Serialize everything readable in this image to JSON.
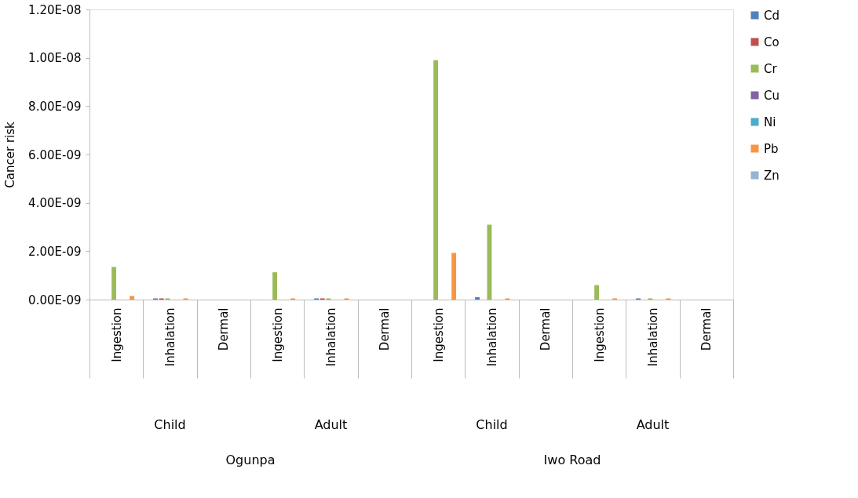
{
  "chart_data": {
    "type": "bar",
    "ylabel": "Cancer risk",
    "categories": [
      "Ingestion",
      "Inhalation",
      "Dermal",
      "Ingestion",
      "Inhalation",
      "Dermal",
      "Ingestion",
      "Inhalation",
      "Dermal",
      "Ingestion",
      "Inhalation",
      "Dermal"
    ],
    "series": [
      {
        "name": "Cd",
        "color": "#4f81bd",
        "values": [
          0,
          5e-11,
          0,
          0,
          5e-11,
          0,
          0,
          1e-10,
          0,
          0,
          5e-11,
          0
        ]
      },
      {
        "name": "Co",
        "color": "#c0504d",
        "values": [
          0,
          5e-11,
          0,
          0,
          5e-11,
          0,
          0,
          0,
          0,
          0,
          0,
          0
        ]
      },
      {
        "name": "Cr",
        "color": "#9bbb59",
        "values": [
          1.35e-09,
          5e-11,
          0,
          1.13e-09,
          5e-11,
          0,
          9.9e-09,
          3.1e-09,
          0,
          6e-10,
          5e-11,
          0
        ]
      },
      {
        "name": "Cu",
        "color": "#8064a2",
        "values": [
          0,
          0,
          0,
          0,
          0,
          0,
          0,
          0,
          0,
          0,
          0,
          0
        ]
      },
      {
        "name": "Ni",
        "color": "#4bacc6",
        "values": [
          0,
          0,
          0,
          0,
          0,
          0,
          0,
          0,
          0,
          0,
          0,
          0
        ]
      },
      {
        "name": "Pb",
        "color": "#f79646",
        "values": [
          1.5e-10,
          5e-11,
          0,
          5e-11,
          5e-11,
          0,
          1.93e-09,
          5e-11,
          0,
          5e-11,
          5e-11,
          0
        ]
      },
      {
        "name": "Zn",
        "color": "#95b3d7",
        "values": [
          0,
          0,
          0,
          0,
          0,
          0,
          0,
          0,
          0,
          0,
          0,
          0
        ]
      }
    ],
    "ylim": [
      0,
      1.2e-08
    ],
    "yticks": [
      {
        "value": 0,
        "label": "0.00E-09"
      },
      {
        "value": 2e-09,
        "label": "2.00E-09"
      },
      {
        "value": 4e-09,
        "label": "4.00E-09"
      },
      {
        "value": 6e-09,
        "label": "6.00E-09"
      },
      {
        "value": 8e-09,
        "label": "8.00E-09"
      },
      {
        "value": 1e-08,
        "label": "1.00E-08"
      },
      {
        "value": 1.2e-08,
        "label": "1.20E-08"
      }
    ],
    "annotations": [
      "Child",
      "Adult",
      "Child",
      "Adult",
      "Ogunpa",
      "Iwo Road"
    ],
    "grid": false,
    "legend": "top right"
  }
}
